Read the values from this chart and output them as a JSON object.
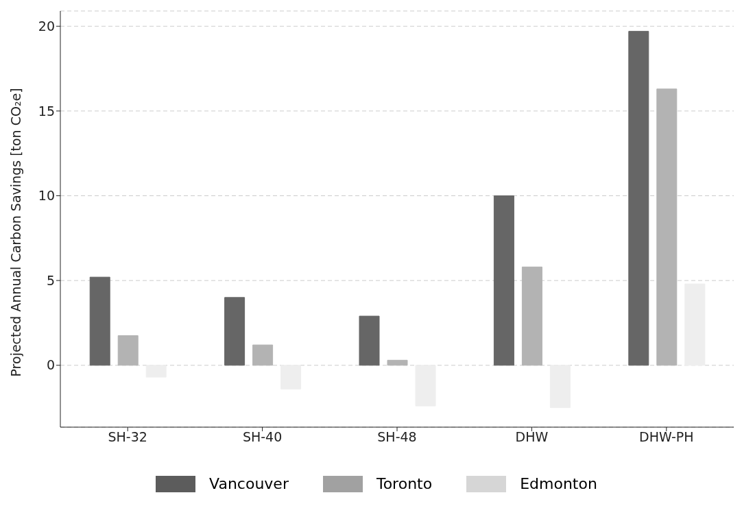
{
  "chart_data": {
    "type": "bar",
    "ylabel": "Projected Annual Carbon Savings [ton CO₂e]",
    "categories": [
      "SH-32",
      "SH-40",
      "SH-48",
      "DHW",
      "DHW-PH"
    ],
    "series": [
      {
        "name": "Vancouver",
        "color": "#666666",
        "values": [
          5.2,
          4.0,
          2.9,
          10.0,
          19.7
        ]
      },
      {
        "name": "Toronto",
        "color": "#b3b3b3",
        "values": [
          1.75,
          1.2,
          0.3,
          5.8,
          16.3
        ]
      },
      {
        "name": "Edmonton",
        "color": "#eeeeee",
        "values": [
          -0.7,
          -1.4,
          -2.4,
          -2.5,
          4.8
        ]
      }
    ],
    "ylim": [
      -3.65,
      20.9
    ],
    "yticks": [
      0,
      5,
      10,
      15,
      20
    ],
    "grid": "y",
    "legend": "bottom"
  }
}
